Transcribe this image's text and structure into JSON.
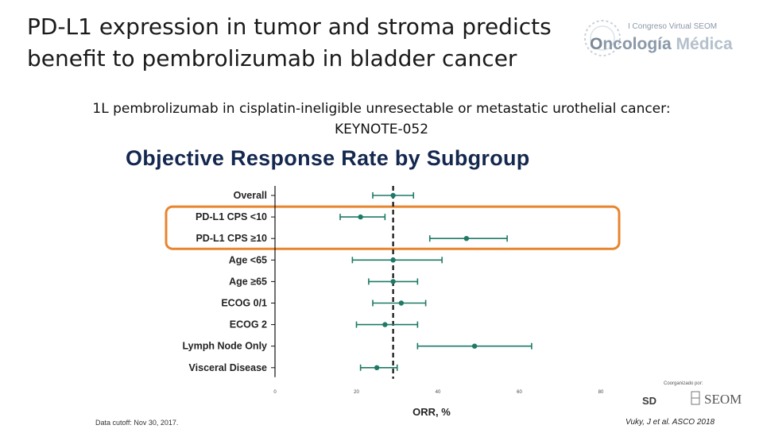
{
  "slide": {
    "title_lines": [
      "PD-L1 expression in tumor and stroma predicts",
      "benefit to pembrolizumab in bladder cancer"
    ],
    "subtitle_lines": [
      "1L pembrolizumab in cisplatin-ineligible unresectable or metastatic urothelial cancer:",
      "KEYNOTE-052"
    ],
    "footnote": "Data cutoff: Nov 30, 2017.",
    "citation": "Vuky, J et al. ASCO 2018"
  },
  "logo": {
    "top_text": "I Congreso Virtual SEOM",
    "main_o": "O",
    "main_rest": "ncología",
    "main_light": "Médica"
  },
  "sponsors": {
    "label": "Coorganizado por:",
    "sd": "SD",
    "seom": "SEOM"
  },
  "chart_data": {
    "type": "forest",
    "title": "Objective Response Rate by Subgroup",
    "xlabel": "ORR, %",
    "xlim": [
      0,
      80
    ],
    "xticks": [
      "0",
      "20",
      "40",
      "60",
      "80"
    ],
    "reference_line": 29,
    "highlight_rows": [
      "PD-L1 CPS <10",
      "PD-L1 CPS ≥10"
    ],
    "highlight_color": "#e8852e",
    "series_color": "#1e7a66",
    "rows": [
      {
        "label": "Overall",
        "value": 29,
        "low": 24,
        "high": 34
      },
      {
        "label": "PD-L1 CPS <10",
        "value": 21,
        "low": 16,
        "high": 27
      },
      {
        "label": "PD-L1 CPS ≥10",
        "value": 47,
        "low": 38,
        "high": 57
      },
      {
        "label": "Age <65",
        "value": 29,
        "low": 19,
        "high": 41
      },
      {
        "label": "Age ≥65",
        "value": 29,
        "low": 23,
        "high": 35
      },
      {
        "label": "ECOG 0/1",
        "value": 31,
        "low": 24,
        "high": 37
      },
      {
        "label": "ECOG 2",
        "value": 27,
        "low": 20,
        "high": 35
      },
      {
        "label": "Lymph Node Only",
        "value": 49,
        "low": 35,
        "high": 63
      },
      {
        "label": "Visceral Disease",
        "value": 25,
        "low": 21,
        "high": 30
      }
    ]
  }
}
